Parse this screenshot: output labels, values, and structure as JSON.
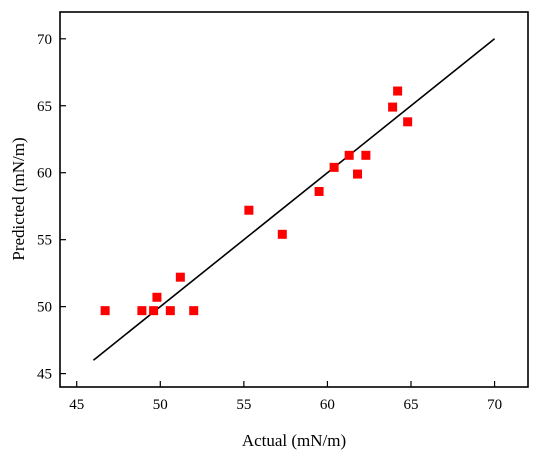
{
  "chart_data": {
    "type": "scatter",
    "title": "",
    "xlabel": "Actual (mN/m)",
    "ylabel": "Predicted (mN/m)",
    "xlim": [
      44,
      72
    ],
    "ylim": [
      44,
      72
    ],
    "xticks": [
      45,
      50,
      55,
      60,
      65,
      70
    ],
    "yticks": [
      45,
      50,
      55,
      60,
      65,
      70
    ],
    "grid": false,
    "marker_color": "#ff0000",
    "line_color": "#000000",
    "points": [
      {
        "x": 46.7,
        "y": 49.7
      },
      {
        "x": 48.9,
        "y": 49.7
      },
      {
        "x": 49.6,
        "y": 49.7
      },
      {
        "x": 49.8,
        "y": 50.7
      },
      {
        "x": 50.6,
        "y": 49.7
      },
      {
        "x": 51.2,
        "y": 52.2
      },
      {
        "x": 52.0,
        "y": 49.7
      },
      {
        "x": 55.3,
        "y": 57.2
      },
      {
        "x": 57.3,
        "y": 55.4
      },
      {
        "x": 59.5,
        "y": 58.6
      },
      {
        "x": 60.4,
        "y": 60.4
      },
      {
        "x": 61.3,
        "y": 61.3
      },
      {
        "x": 61.8,
        "y": 59.9
      },
      {
        "x": 62.3,
        "y": 61.3
      },
      {
        "x": 63.9,
        "y": 64.9
      },
      {
        "x": 64.2,
        "y": 66.1
      },
      {
        "x": 64.8,
        "y": 63.8
      }
    ],
    "fit_line": {
      "x": [
        46,
        70
      ],
      "y": [
        46,
        70
      ]
    }
  }
}
